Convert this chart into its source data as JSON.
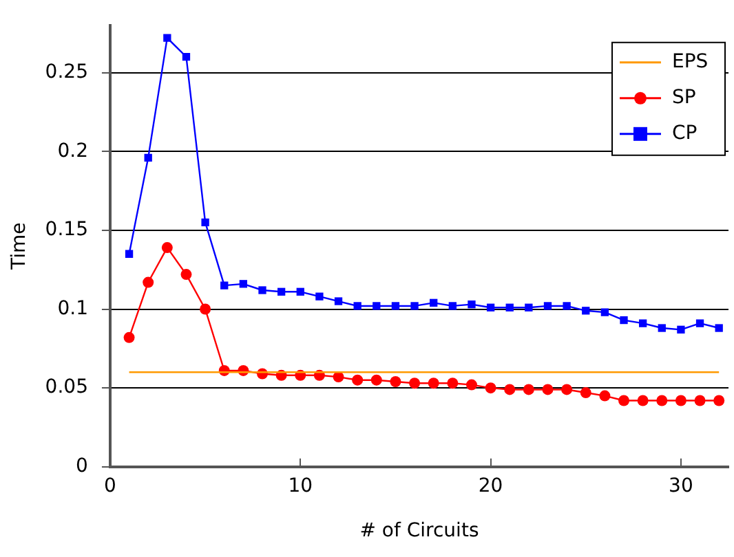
{
  "chart_data": {
    "type": "line",
    "xlabel": "# of Circuits",
    "ylabel": "Time",
    "x": [
      1,
      2,
      3,
      4,
      5,
      6,
      7,
      8,
      9,
      10,
      11,
      12,
      13,
      14,
      15,
      16,
      17,
      18,
      19,
      20,
      21,
      22,
      23,
      24,
      25,
      26,
      27,
      28,
      29,
      30,
      31,
      32
    ],
    "xlim": [
      0,
      32.5
    ],
    "xticks": [
      0,
      10,
      20,
      30
    ],
    "ylim": [
      0,
      0.28
    ],
    "yticks": [
      0,
      0.05,
      0.1,
      0.15,
      0.2,
      0.25
    ],
    "grid": "y",
    "legend": "top right",
    "series": [
      {
        "name": "EPS",
        "color": "#ff9900",
        "marker": "none",
        "values": [
          0.06,
          0.06,
          0.06,
          0.06,
          0.06,
          0.06,
          0.06,
          0.06,
          0.06,
          0.06,
          0.06,
          0.06,
          0.06,
          0.06,
          0.06,
          0.06,
          0.06,
          0.06,
          0.06,
          0.06,
          0.06,
          0.06,
          0.06,
          0.06,
          0.06,
          0.06,
          0.06,
          0.06,
          0.06,
          0.06,
          0.06,
          0.06
        ]
      },
      {
        "name": "SP",
        "color": "#ff0000",
        "marker": "circle",
        "values": [
          0.082,
          0.117,
          0.139,
          0.122,
          0.1,
          0.061,
          0.061,
          0.059,
          0.058,
          0.058,
          0.058,
          0.057,
          0.055,
          0.055,
          0.054,
          0.053,
          0.053,
          0.053,
          0.052,
          0.05,
          0.049,
          0.049,
          0.049,
          0.049,
          0.047,
          0.045,
          0.042,
          0.042,
          0.042,
          0.042,
          0.042,
          0.042
        ]
      },
      {
        "name": "CP",
        "color": "#0000ff",
        "marker": "square",
        "values": [
          0.135,
          0.196,
          0.272,
          0.26,
          0.155,
          0.115,
          0.116,
          0.112,
          0.111,
          0.111,
          0.108,
          0.105,
          0.102,
          0.102,
          0.102,
          0.102,
          0.104,
          0.102,
          0.103,
          0.101,
          0.101,
          0.101,
          0.102,
          0.102,
          0.099,
          0.098,
          0.093,
          0.091,
          0.088,
          0.087,
          0.091,
          0.088
        ]
      }
    ]
  }
}
